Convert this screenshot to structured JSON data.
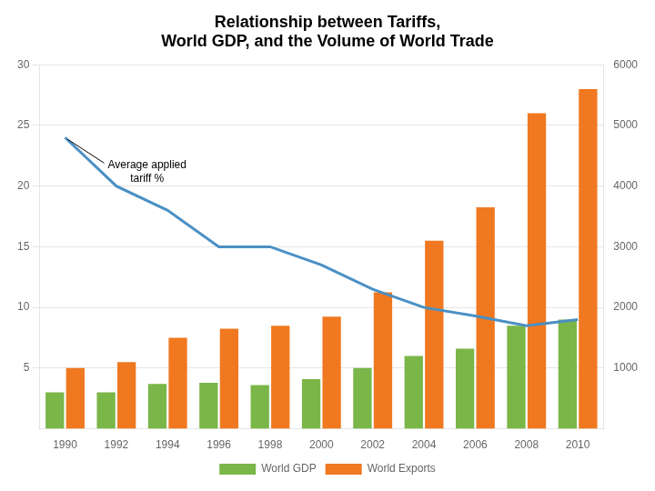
{
  "chart_data": {
    "type": "bar",
    "title": "Relationship between Tariffs,\nWorld GDP, and the Volume of World Trade",
    "categories": [
      "1990",
      "1992",
      "1994",
      "1996",
      "1998",
      "2000",
      "2002",
      "2004",
      "2006",
      "2008",
      "2010"
    ],
    "series": [
      {
        "name": "World GDP",
        "type": "bar",
        "color": "#7ab648",
        "values": [
          3.0,
          3.0,
          3.7,
          3.8,
          3.6,
          4.1,
          5.0,
          6.0,
          6.6,
          8.5,
          9.0
        ]
      },
      {
        "name": "World Exports",
        "type": "bar",
        "color": "#f07820",
        "axis": "y2",
        "values": [
          1000,
          1100,
          1500,
          1650,
          1700,
          1850,
          2250,
          3100,
          3650,
          5200,
          5600
        ]
      },
      {
        "type": "line",
        "color": "#4a90c4",
        "values": [
          24.0,
          20.0,
          18.0,
          15.0,
          15.0,
          13.5,
          11.5,
          10.0,
          9.3,
          8.5,
          9.0
        ]
      }
    ],
    "ylim": [
      0,
      30
    ],
    "yticks": [
      5,
      10,
      15,
      20,
      25,
      30
    ],
    "y2lim": [
      0,
      6000
    ],
    "y2ticks": [
      1000,
      2000,
      3000,
      4000,
      5000,
      6000
    ],
    "grid": "y",
    "legend": "bottom",
    "annotation": "Average applied\ntariff %"
  }
}
